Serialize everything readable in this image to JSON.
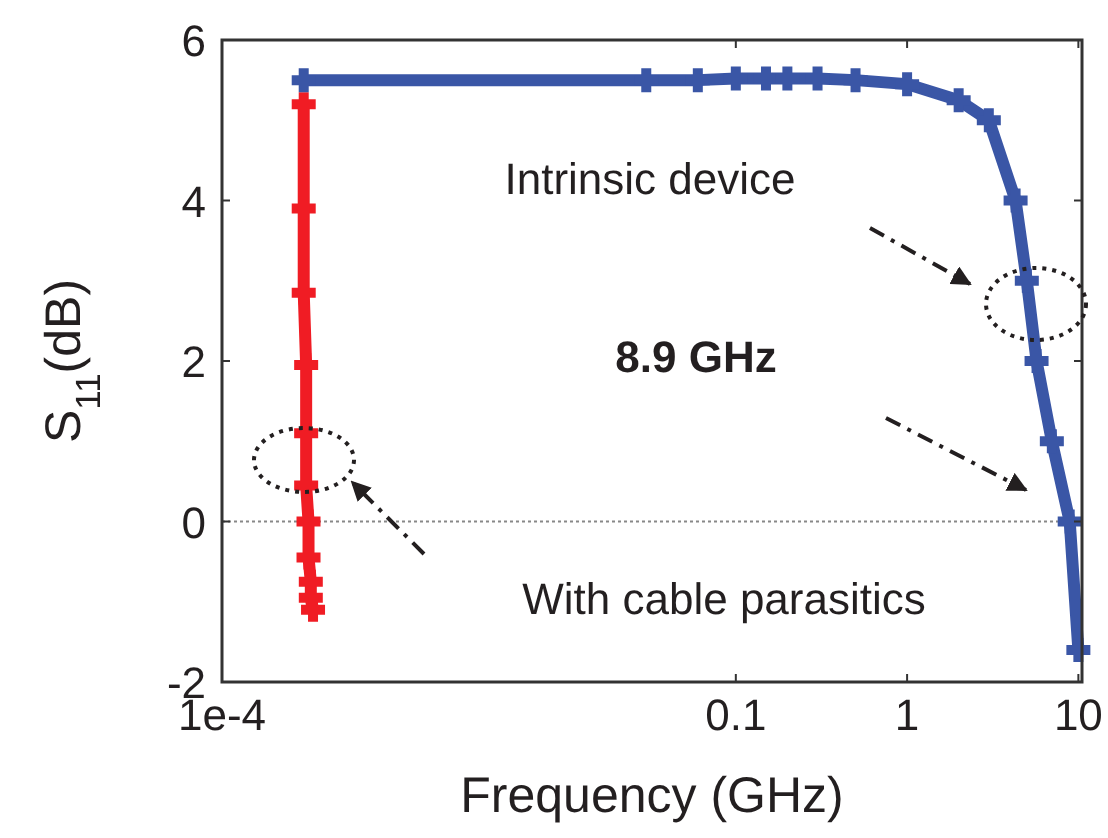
{
  "chart_data": {
    "type": "line",
    "xlabel": "Frequency (GHz)",
    "ylabel": "S$_{11}$(dB)",
    "log": "x",
    "xlim": [
      0.0001,
      10.5
    ],
    "ylim": [
      -2,
      6
    ],
    "xticks": [
      {
        "value": 0.0001,
        "label": "1e-4"
      },
      0.1,
      1,
      10
    ],
    "yticks": [
      -2,
      0,
      2,
      4,
      6
    ],
    "grid": false,
    "marker": "cross",
    "line_style": "solid",
    "series": [
      {
        "color": "#f01c24",
        "x": [
          0.0003,
          0.0003,
          0.0003,
          0.00031,
          0.00031,
          0.00031,
          0.00032,
          0.00032,
          0.00033,
          0.00033,
          0.00034
        ],
        "values": [
          5.2,
          3.9,
          2.85,
          1.95,
          1.1,
          0.45,
          0,
          -0.45,
          -0.75,
          -0.95,
          -1.1
        ]
      },
      {
        "color": "#3a56a6",
        "x": [
          0.0003,
          0.03,
          0.06,
          0.1,
          0.15,
          0.2,
          0.3,
          0.5,
          1,
          2,
          3,
          4.3,
          5,
          5.7,
          7,
          8.9,
          10
        ],
        "values": [
          5.5,
          5.5,
          5.5,
          5.52,
          5.52,
          5.52,
          5.52,
          5.5,
          5.45,
          5.25,
          5.0,
          4.0,
          3.0,
          2.0,
          1.0,
          0,
          -1.6
        ]
      }
    ],
    "ref_lines": [
      {
        "axis": "y",
        "value": 0,
        "color": "#888888",
        "line_style": "dotted"
      }
    ],
    "annotations": [
      {
        "text": "Intrinsic device"
      },
      {
        "text": "8.9 GHz"
      },
      {
        "text": "With cable parasitics"
      }
    ]
  }
}
